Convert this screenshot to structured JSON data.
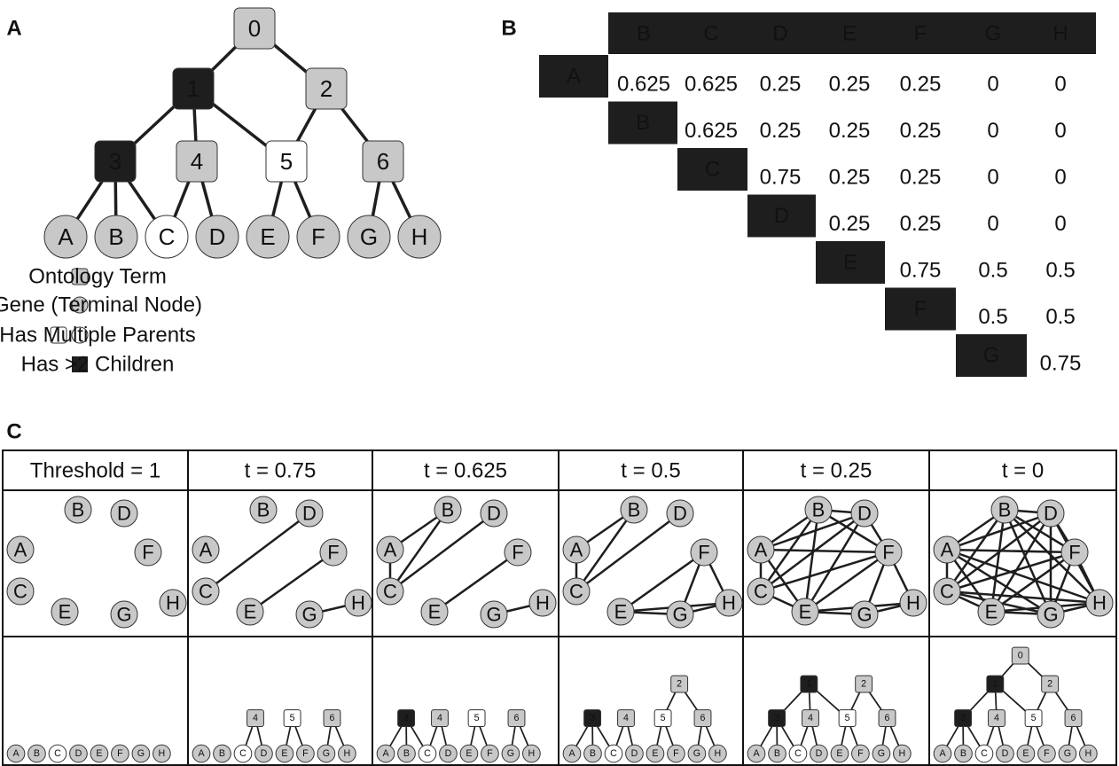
{
  "panel_a": {
    "label": "A",
    "terms": [
      "0",
      "1",
      "2",
      "3",
      "4",
      "5",
      "6"
    ],
    "genes": [
      "A",
      "B",
      "C",
      "D",
      "E",
      "F",
      "G",
      "H"
    ],
    "legend": [
      "Ontology Term",
      "Gene (Terminal Node)",
      "Has Multiple Parents",
      "Has >2 Children"
    ]
  },
  "panel_b": {
    "label": "B",
    "columns": [
      "B",
      "C",
      "D",
      "E",
      "F",
      "G",
      "H"
    ],
    "rows": [
      {
        "name": "A",
        "values": [
          0.625,
          0.625,
          0.25,
          0.25,
          0.25,
          0,
          0
        ]
      },
      {
        "name": "B",
        "values": [
          0.625,
          0.25,
          0.25,
          0.25,
          0,
          0
        ]
      },
      {
        "name": "C",
        "values": [
          0.75,
          0.25,
          0.25,
          0,
          0
        ]
      },
      {
        "name": "D",
        "values": [
          0.25,
          0.25,
          0,
          0
        ]
      },
      {
        "name": "E",
        "values": [
          0.75,
          0.5,
          0.5
        ]
      },
      {
        "name": "F",
        "values": [
          0.5,
          0.5
        ]
      },
      {
        "name": "G",
        "values": [
          0.75
        ]
      }
    ]
  },
  "panel_c": {
    "label": "C",
    "headers": [
      "Threshold = 1",
      "t = 0.75",
      "t = 0.625",
      "t = 0.5",
      "t = 0.25",
      "t = 0"
    ]
  }
}
